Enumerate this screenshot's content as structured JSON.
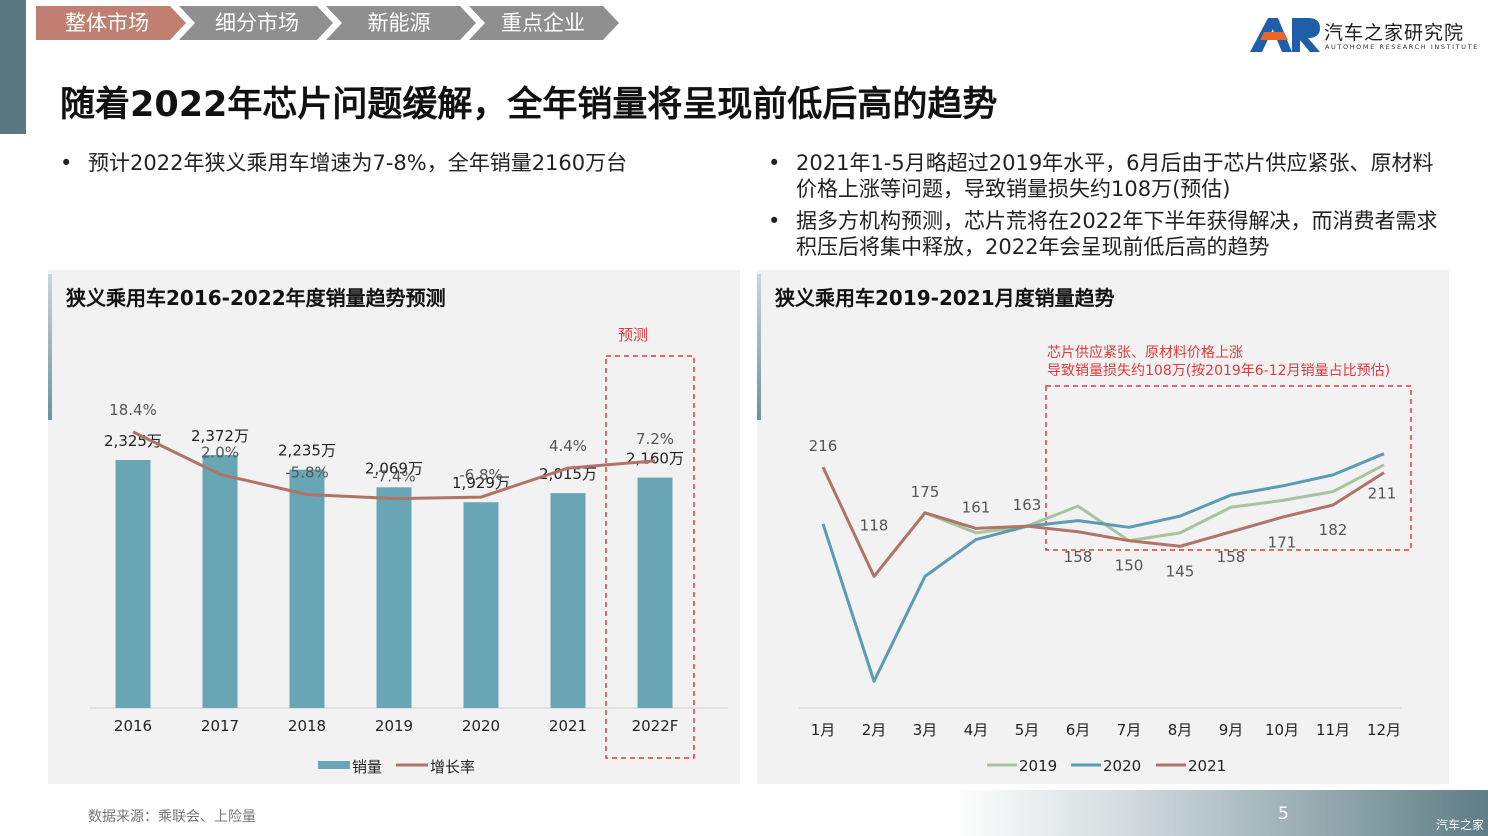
{
  "nav": {
    "tabs": [
      {
        "label": "整体市场"
      },
      {
        "label": "细分市场"
      },
      {
        "label": "新能源"
      },
      {
        "label": "重点企业"
      }
    ]
  },
  "logo": {
    "cn": "汽车之家研究院",
    "en": "AUTOHOME RESEARCH INSTITUTE"
  },
  "title": "随着2022年芯片问题缓解，全年销量将呈现前低后高的趋势",
  "bullets_left": [
    "预计2022年狭义乘用车增速为7-8%，全年销量2160万台"
  ],
  "bullets_right": [
    "2021年1-5月略超过2019年水平，6月后由于芯片供应紧张、原材料价格上涨等问题，导致销量损失约108万(预估)",
    "据多方机构预测，芯片荒将在2022年下半年获得解决，而消费者需求积压后将集中释放，2022年会呈现前低后高的趋势"
  ],
  "colors": {
    "bar": "#68a6b5",
    "growth_line": "#b07466",
    "s2019": "#a9c3a0",
    "s2020": "#5c9bb4",
    "s2021": "#b07466",
    "highlight": "#e23a3a",
    "nav_active": "#c17f72",
    "nav_inactive": "#8f8f8f"
  },
  "chart_data": [
    {
      "type": "bar",
      "title": "狭义乘用车2016-2022年度销量趋势预测",
      "categories": [
        "2016",
        "2017",
        "2018",
        "2019",
        "2020",
        "2021",
        "2022F"
      ],
      "series": [
        {
          "name": "销量",
          "kind": "bar",
          "values": [
            2325,
            2372,
            2235,
            2069,
            1929,
            2015,
            2160
          ],
          "labels": [
            "2,325万",
            "2,372万",
            "2,235万",
            "2,069万",
            "1,929万",
            "2,015万",
            "2,160万"
          ]
        },
        {
          "name": "增长率",
          "kind": "line",
          "values": [
            18.4,
            2.0,
            -5.8,
            -7.4,
            -6.8,
            4.4,
            7.2
          ],
          "labels": [
            "18.4%",
            "2.0%",
            "-5.8%",
            "-7.4%",
            "-6.8%",
            "4.4%",
            "7.2%"
          ]
        }
      ],
      "ylim": [
        0,
        2700
      ],
      "growth_ylim": [
        -40,
        45
      ],
      "annotation": "预测",
      "legend": "bottom"
    },
    {
      "type": "line",
      "title": "狭义乘用车2019-2021月度销量趋势",
      "categories": [
        "1月",
        "2月",
        "3月",
        "4月",
        "5月",
        "6月",
        "7月",
        "8月",
        "9月",
        "10月",
        "11月",
        "12月"
      ],
      "series": [
        {
          "name": "2019",
          "values": [
            null,
            null,
            175,
            157,
            163,
            181,
            150,
            157,
            180,
            186,
            194,
            218
          ]
        },
        {
          "name": "2020",
          "values": [
            165,
            24,
            118,
            151,
            163,
            168,
            162,
            172,
            191,
            199,
            209,
            228
          ]
        },
        {
          "name": "2021",
          "values": [
            216,
            118,
            175,
            161,
            163,
            158,
            150,
            145,
            158,
            171,
            182,
            211
          ]
        }
      ],
      "point_labels_2021": [
        "216",
        "118",
        "175",
        "161",
        "163",
        "158",
        "150",
        "145",
        "158",
        "171",
        "182",
        "211"
      ],
      "ylim": [
        0,
        260
      ],
      "annotation_line1": "芯片供应紧张、原材料价格上涨",
      "annotation_line2": "导致销量损失约108万(按2019年6-12月销量占比预估)",
      "legend": "bottom"
    }
  ],
  "footer": {
    "source": "数据来源：乘联会、上险量",
    "page": "5",
    "watermark": "汽车之家"
  }
}
